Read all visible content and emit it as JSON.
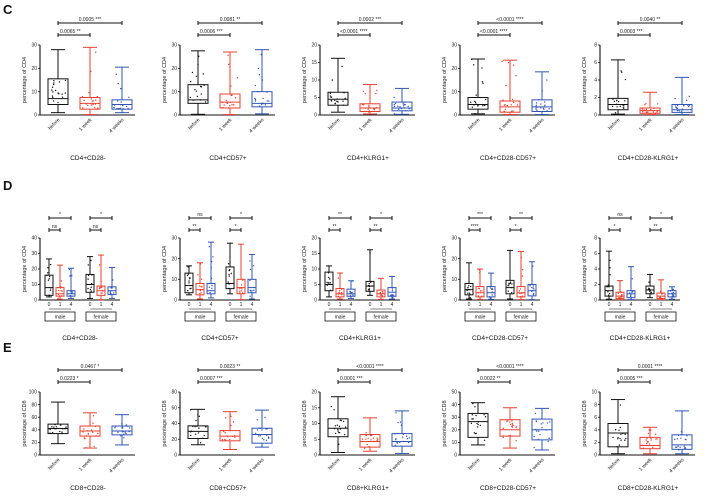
{
  "colors": {
    "before": "#111111",
    "week1": "#e8402f",
    "week4": "#2f55b5"
  },
  "panels": [
    {
      "letter": "C"
    },
    {
      "letter": "D"
    },
    {
      "letter": "E"
    }
  ],
  "chart_data": [
    {
      "type": "box",
      "panel": "C",
      "title": "CD4+CD28-",
      "ylabel": "percentage of CD4",
      "ylim": [
        0,
        30
      ],
      "yticks": [
        0,
        10,
        20,
        30
      ],
      "categories": [
        "before",
        "1 week",
        "4 weeks"
      ],
      "boxes": [
        {
          "min": 1,
          "q1": 4.5,
          "median": 7,
          "q3": 15.5,
          "max": 28
        },
        {
          "min": 0.2,
          "q1": 2.5,
          "median": 5,
          "q3": 7.5,
          "max": 29
        },
        {
          "min": 1,
          "q1": 2.5,
          "median": 4.5,
          "q3": 6.5,
          "max": 20.5
        }
      ],
      "comparisons": [
        {
          "from": 0,
          "to": 1,
          "p": "0.0065",
          "stars": "**"
        },
        {
          "from": 0,
          "to": 2,
          "p": "0.0005",
          "stars": "***"
        }
      ]
    },
    {
      "type": "box",
      "panel": "C",
      "title": "CD4+CD57+",
      "ylabel": "percentage of CD4",
      "ylim": [
        0,
        30
      ],
      "yticks": [
        0,
        10,
        20,
        30
      ],
      "categories": [
        "before",
        "1 week",
        "4 weeks"
      ],
      "boxes": [
        {
          "min": 0.3,
          "q1": 5,
          "median": 6.5,
          "q3": 13,
          "max": 27.5
        },
        {
          "min": 0.2,
          "q1": 3,
          "median": 5.5,
          "q3": 9,
          "max": 27
        },
        {
          "min": 0.5,
          "q1": 3.5,
          "median": 5,
          "q3": 10,
          "max": 28
        }
      ],
      "comparisons": [
        {
          "from": 0,
          "to": 1,
          "p": "0.0006",
          "stars": "***"
        },
        {
          "from": 0,
          "to": 2,
          "p": "0.0081",
          "stars": "**"
        }
      ]
    },
    {
      "type": "box",
      "panel": "C",
      "title": "CD4+KLRG1+",
      "ylabel": "percentage of CD4",
      "ylim": [
        0,
        20
      ],
      "yticks": [
        0,
        5,
        10,
        15,
        20
      ],
      "categories": [
        "before",
        "1 week",
        "4 weeks"
      ],
      "boxes": [
        {
          "min": 0.8,
          "q1": 2.8,
          "median": 4.5,
          "q3": 6.5,
          "max": 16.2
        },
        {
          "min": 0.3,
          "q1": 1,
          "median": 2,
          "q3": 3.2,
          "max": 8.7
        },
        {
          "min": 0.2,
          "q1": 1.2,
          "median": 2,
          "q3": 3.7,
          "max": 7.6
        }
      ],
      "comparisons": [
        {
          "from": 0,
          "to": 1,
          "p": "<0.0001",
          "stars": "****"
        },
        {
          "from": 0,
          "to": 2,
          "p": "0.0002",
          "stars": "***"
        }
      ]
    },
    {
      "type": "box",
      "panel": "C",
      "title": "CD4+CD28-CD57+",
      "ylabel": "percentage of CD4",
      "ylim": [
        0,
        30
      ],
      "yticks": [
        0,
        10,
        20,
        30
      ],
      "categories": [
        "before",
        "1 week",
        "4 weeks"
      ],
      "boxes": [
        {
          "min": 0.5,
          "q1": 2.5,
          "median": 4.5,
          "q3": 7.5,
          "max": 24
        },
        {
          "min": 0.2,
          "q1": 1.2,
          "median": 3.5,
          "q3": 6,
          "max": 23.5
        },
        {
          "min": 0.2,
          "q1": 1.5,
          "median": 3.5,
          "q3": 6.5,
          "max": 18.5
        }
      ],
      "comparisons": [
        {
          "from": 0,
          "to": 1,
          "p": "<0.0001",
          "stars": "****"
        },
        {
          "from": 0,
          "to": 2,
          "p": "<0.0001",
          "stars": "****"
        }
      ]
    },
    {
      "type": "box",
      "panel": "C",
      "title": "CD4+CD28-KLRG1+",
      "ylabel": "percentage of CD4",
      "ylim": [
        0,
        8
      ],
      "yticks": [
        0,
        2,
        4,
        6,
        8
      ],
      "categories": [
        "before",
        "1 week",
        "4 weeks"
      ],
      "boxes": [
        {
          "min": 0.1,
          "q1": 0.6,
          "median": 1.2,
          "q3": 1.9,
          "max": 6.3
        },
        {
          "min": 0.05,
          "q1": 0.2,
          "median": 0.5,
          "q3": 0.8,
          "max": 2.6
        },
        {
          "min": 0.05,
          "q1": 0.3,
          "median": 0.6,
          "q3": 1.2,
          "max": 4.3
        }
      ],
      "comparisons": [
        {
          "from": 0,
          "to": 1,
          "p": "0.0003",
          "stars": "***"
        },
        {
          "from": 0,
          "to": 2,
          "p": "0.0040",
          "stars": "**"
        }
      ]
    },
    {
      "type": "box",
      "panel": "D",
      "title": "CD4+CD28-",
      "ylabel": "percentage of CD4",
      "ylim": [
        0,
        40
      ],
      "yticks": [
        0,
        10,
        20,
        30,
        40
      ],
      "categories": [
        "0",
        "1",
        "4",
        "0",
        "1",
        "4"
      ],
      "groups": [
        "male",
        "female"
      ],
      "boxes": [
        {
          "min": 2,
          "q1": 3,
          "median": 8,
          "q3": 16,
          "max": 26.5
        },
        {
          "min": 0.5,
          "q1": 2.5,
          "median": 4,
          "q3": 8,
          "max": 22.5
        },
        {
          "min": 1,
          "q1": 2.5,
          "median": 4,
          "q3": 6,
          "max": 20.5
        },
        {
          "min": 1,
          "q1": 5,
          "median": 10,
          "q3": 16.5,
          "max": 28
        },
        {
          "min": 0.2,
          "q1": 3,
          "median": 6,
          "q3": 9,
          "max": 29
        },
        {
          "min": 1,
          "q1": 3.5,
          "median": 6,
          "q3": 8.5,
          "max": 21
        }
      ],
      "comparisons": [
        {
          "from": 0,
          "to": 1,
          "p": "",
          "stars": "ns"
        },
        {
          "from": 0,
          "to": 2,
          "p": "",
          "stars": "*"
        },
        {
          "from": 3,
          "to": 4,
          "p": "",
          "stars": "ns"
        },
        {
          "from": 3,
          "to": 5,
          "p": "",
          "stars": "*"
        }
      ]
    },
    {
      "type": "box",
      "panel": "D",
      "title": "CD4+CD57+",
      "ylabel": "percentage of CD4",
      "ylim": [
        0,
        30
      ],
      "yticks": [
        0,
        10,
        20,
        30
      ],
      "categories": [
        "0",
        "1",
        "4",
        "0",
        "1",
        "4"
      ],
      "groups": [
        "male",
        "female"
      ],
      "boxes": [
        {
          "min": 2.5,
          "q1": 3.5,
          "median": 7,
          "q3": 13,
          "max": 16.5
        },
        {
          "min": 0.5,
          "q1": 2.5,
          "median": 5,
          "q3": 8,
          "max": 18
        },
        {
          "min": 1,
          "q1": 3,
          "median": 4.5,
          "q3": 8,
          "max": 28
        },
        {
          "min": 3,
          "q1": 5.5,
          "median": 8,
          "q3": 16,
          "max": 27.5
        },
        {
          "min": 0.2,
          "q1": 3,
          "median": 6,
          "q3": 10,
          "max": 27
        },
        {
          "min": 0.5,
          "q1": 3.5,
          "median": 6,
          "q3": 10,
          "max": 22
        }
      ],
      "comparisons": [
        {
          "from": 0,
          "to": 1,
          "p": "",
          "stars": "**"
        },
        {
          "from": 0,
          "to": 2,
          "p": "",
          "stars": "ns"
        },
        {
          "from": 3,
          "to": 4,
          "p": "",
          "stars": "*"
        },
        {
          "from": 3,
          "to": 5,
          "p": "",
          "stars": "*"
        }
      ]
    },
    {
      "type": "box",
      "panel": "D",
      "title": "CD4+KLRG1+",
      "ylabel": "percentage of CD4",
      "ylim": [
        0,
        20
      ],
      "yticks": [
        0,
        5,
        10,
        15,
        20
      ],
      "categories": [
        "0",
        "1",
        "4",
        "0",
        "1",
        "4"
      ],
      "groups": [
        "male",
        "female"
      ],
      "boxes": [
        {
          "min": 1,
          "q1": 3,
          "median": 5,
          "q3": 9,
          "max": 11
        },
        {
          "min": 0.3,
          "q1": 1,
          "median": 2,
          "q3": 3.7,
          "max": 8.7
        },
        {
          "min": 0.5,
          "q1": 1.2,
          "median": 2,
          "q3": 3.5,
          "max": 6.2
        },
        {
          "min": 1.5,
          "q1": 2.8,
          "median": 4.5,
          "q3": 6,
          "max": 16.2
        },
        {
          "min": 0.2,
          "q1": 1,
          "median": 2,
          "q3": 3.2,
          "max": 7
        },
        {
          "min": 0.3,
          "q1": 1.2,
          "median": 2.5,
          "q3": 4,
          "max": 7.6
        }
      ],
      "comparisons": [
        {
          "from": 0,
          "to": 1,
          "p": "",
          "stars": "**"
        },
        {
          "from": 0,
          "to": 2,
          "p": "",
          "stars": "**"
        },
        {
          "from": 3,
          "to": 4,
          "p": "",
          "stars": "**"
        },
        {
          "from": 3,
          "to": 5,
          "p": "",
          "stars": "*"
        }
      ]
    },
    {
      "type": "box",
      "panel": "D",
      "title": "CD4+CD28-CD57+",
      "ylabel": "percentage of CD4",
      "ylim": [
        0,
        30
      ],
      "yticks": [
        0,
        10,
        20,
        30
      ],
      "categories": [
        "0",
        "1",
        "4",
        "0",
        "1",
        "4"
      ],
      "groups": [
        "male",
        "female"
      ],
      "boxes": [
        {
          "min": 0.5,
          "q1": 2.5,
          "median": 5,
          "q3": 8,
          "max": 18
        },
        {
          "min": 0.3,
          "q1": 1.5,
          "median": 3.5,
          "q3": 6.5,
          "max": 15
        },
        {
          "min": 0.3,
          "q1": 1.5,
          "median": 3.5,
          "q3": 6.5,
          "max": 13
        },
        {
          "min": 0.5,
          "q1": 3,
          "median": 6,
          "q3": 9.5,
          "max": 24
        },
        {
          "min": 0.2,
          "q1": 1.5,
          "median": 3.5,
          "q3": 6.5,
          "max": 23.5
        },
        {
          "min": 0.2,
          "q1": 2,
          "median": 4.5,
          "q3": 7.5,
          "max": 18.5
        }
      ],
      "comparisons": [
        {
          "from": 0,
          "to": 1,
          "p": "",
          "stars": "****"
        },
        {
          "from": 0,
          "to": 2,
          "p": "",
          "stars": "***"
        },
        {
          "from": 3,
          "to": 4,
          "p": "",
          "stars": "*"
        },
        {
          "from": 3,
          "to": 5,
          "p": "",
          "stars": "**"
        }
      ]
    },
    {
      "type": "box",
      "panel": "D",
      "title": "CD4+CD28-KLRG1+",
      "ylabel": "percentage of CD4",
      "ylim": [
        0,
        8
      ],
      "yticks": [
        0,
        2,
        4,
        6,
        8
      ],
      "categories": [
        "0",
        "1",
        "4",
        "0",
        "1",
        "4"
      ],
      "groups": [
        "male",
        "female"
      ],
      "boxes": [
        {
          "min": 0.1,
          "q1": 0.5,
          "median": 1.2,
          "q3": 1.8,
          "max": 6.3
        },
        {
          "min": 0.05,
          "q1": 0.2,
          "median": 0.5,
          "q3": 1,
          "max": 2.5
        },
        {
          "min": 0.05,
          "q1": 0.3,
          "median": 0.8,
          "q3": 1.2,
          "max": 4.3
        },
        {
          "min": 0.3,
          "q1": 0.8,
          "median": 1.3,
          "q3": 1.8,
          "max": 3.3
        },
        {
          "min": 0.05,
          "q1": 0.2,
          "median": 0.5,
          "q3": 0.9,
          "max": 2.6
        },
        {
          "min": 0.1,
          "q1": 0.4,
          "median": 0.8,
          "q3": 1.2,
          "max": 1.7
        }
      ],
      "comparisons": [
        {
          "from": 0,
          "to": 1,
          "p": "",
          "stars": "*"
        },
        {
          "from": 0,
          "to": 2,
          "p": "",
          "stars": "ns"
        },
        {
          "from": 3,
          "to": 4,
          "p": "",
          "stars": "**"
        },
        {
          "from": 3,
          "to": 5,
          "p": "",
          "stars": "*"
        }
      ]
    },
    {
      "type": "box",
      "panel": "E",
      "title": "CD8+CD28-",
      "ylabel": "percentage of CD8",
      "ylim": [
        0,
        100
      ],
      "yticks": [
        0,
        20,
        40,
        60,
        80,
        100
      ],
      "categories": [
        "before",
        "1 week",
        "4 weeks"
      ],
      "boxes": [
        {
          "min": 18,
          "q1": 34,
          "median": 42,
          "q3": 49,
          "max": 84
        },
        {
          "min": 11,
          "q1": 30,
          "median": 38,
          "q3": 46,
          "max": 67
        },
        {
          "min": 16,
          "q1": 32,
          "median": 38,
          "q3": 46,
          "max": 64
        }
      ],
      "comparisons": [
        {
          "from": 0,
          "to": 1,
          "p": "0.0223",
          "stars": "*"
        },
        {
          "from": 0,
          "to": 2,
          "p": "0.0467",
          "stars": "*"
        }
      ]
    },
    {
      "type": "box",
      "panel": "E",
      "title": "CD8+CD57+",
      "ylabel": "percentage of CD8",
      "ylim": [
        0,
        80
      ],
      "yticks": [
        0,
        20,
        40,
        60,
        80
      ],
      "categories": [
        "before",
        "1 week",
        "4 weeks"
      ],
      "boxes": [
        {
          "min": 13,
          "q1": 21,
          "median": 30,
          "q3": 37,
          "max": 58
        },
        {
          "min": 7,
          "q1": 18,
          "median": 24,
          "q3": 31,
          "max": 55
        },
        {
          "min": 10,
          "q1": 15,
          "median": 26,
          "q3": 34,
          "max": 57
        }
      ],
      "comparisons": [
        {
          "from": 0,
          "to": 1,
          "p": "0.0007",
          "stars": "***"
        },
        {
          "from": 0,
          "to": 2,
          "p": "0.0023",
          "stars": "**"
        }
      ]
    },
    {
      "type": "box",
      "panel": "E",
      "title": "CD8+KLRG1+",
      "ylabel": "percentage of CD8",
      "ylim": [
        0,
        20
      ],
      "yticks": [
        0,
        5,
        10,
        15,
        20
      ],
      "categories": [
        "before",
        "1 week",
        "4 weeks"
      ],
      "boxes": [
        {
          "min": 0.8,
          "q1": 5.8,
          "median": 8.5,
          "q3": 11.5,
          "max": 18.5
        },
        {
          "min": 1.2,
          "q1": 2.5,
          "median": 4.3,
          "q3": 6.5,
          "max": 11.8
        },
        {
          "min": 0.5,
          "q1": 2.8,
          "median": 4.3,
          "q3": 6.8,
          "max": 14
        }
      ],
      "comparisons": [
        {
          "from": 0,
          "to": 1,
          "p": "0.0001",
          "stars": "***"
        },
        {
          "from": 0,
          "to": 2,
          "p": "<0.0001",
          "stars": "****"
        }
      ]
    },
    {
      "type": "box",
      "panel": "E",
      "title": "CD8+CD28-CD57+",
      "ylabel": "percentage of CD8",
      "ylim": [
        0,
        50
      ],
      "yticks": [
        0,
        10,
        20,
        30,
        40,
        50
      ],
      "categories": [
        "before",
        "1 week",
        "4 weeks"
      ],
      "boxes": [
        {
          "min": 8,
          "q1": 14,
          "median": 26.5,
          "q3": 33,
          "max": 41.5
        },
        {
          "min": 5.5,
          "q1": 15,
          "median": 20,
          "q3": 28,
          "max": 37.5
        },
        {
          "min": 4,
          "q1": 12,
          "median": 20,
          "q3": 28.5,
          "max": 37
        }
      ],
      "comparisons": [
        {
          "from": 0,
          "to": 1,
          "p": "0.0022",
          "stars": "**"
        },
        {
          "from": 0,
          "to": 2,
          "p": "<0.0001",
          "stars": "****"
        }
      ]
    },
    {
      "type": "box",
      "panel": "E",
      "title": "CD8+CD28-KLRG1+",
      "ylabel": "percentage of CD8",
      "ylim": [
        0,
        10
      ],
      "yticks": [
        0,
        2,
        4,
        6,
        8,
        10
      ],
      "categories": [
        "before",
        "1 week",
        "4 weeks"
      ],
      "boxes": [
        {
          "min": 0.2,
          "q1": 1.3,
          "median": 3.5,
          "q3": 5,
          "max": 8.8
        },
        {
          "min": 0.2,
          "q1": 1,
          "median": 1.5,
          "q3": 2.8,
          "max": 4.4
        },
        {
          "min": 0.2,
          "q1": 0.9,
          "median": 1.6,
          "q3": 3.2,
          "max": 7
        }
      ],
      "comparisons": [
        {
          "from": 0,
          "to": 1,
          "p": "0.0005",
          "stars": "***"
        },
        {
          "from": 0,
          "to": 2,
          "p": "0.0001",
          "stars": "****"
        }
      ]
    }
  ]
}
